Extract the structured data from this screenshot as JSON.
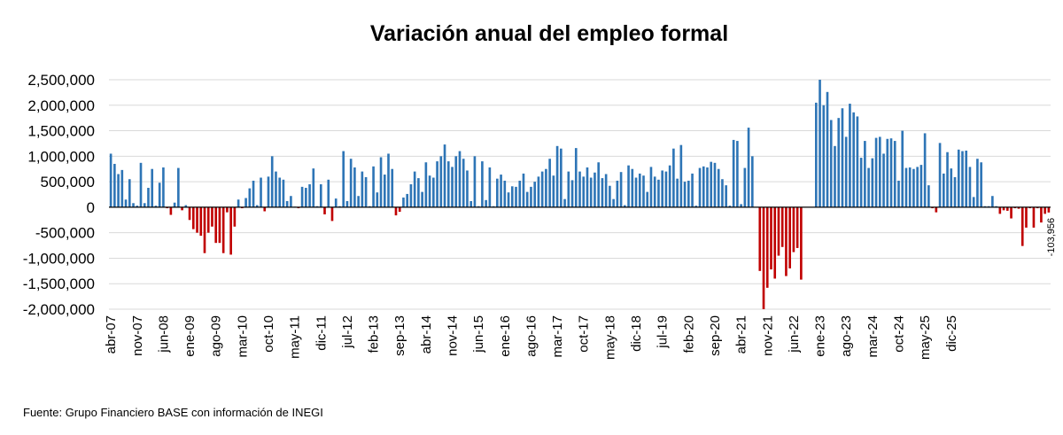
{
  "chart_data": {
    "type": "bar",
    "title": "Variación anual del empleo formal",
    "source": "Fuente: Grupo Financiero BASE con información de INEGI",
    "ylim": [
      -2000000,
      2500000
    ],
    "yticks": [
      2500000,
      2000000,
      1500000,
      1000000,
      500000,
      0,
      -500000,
      -1000000,
      -1500000,
      -2000000
    ],
    "ytick_labels": [
      "2,500,000",
      "2,000,000",
      "1,500,000",
      "1,000,000",
      "500,000",
      "0",
      "-500,000",
      "-1,000,000",
      "-1,500,000",
      "-2,000,000"
    ],
    "grid": true,
    "legend": "none",
    "x_start": "abr-07",
    "x_end": "dic-25",
    "xtick_labels": [
      "abr-07",
      "nov-07",
      "jun-08",
      "ene-09",
      "ago-09",
      "mar-10",
      "oct-10",
      "may-11",
      "dic-11",
      "jul-12",
      "feb-13",
      "sep-13",
      "abr-14",
      "nov-14",
      "jun-15",
      "ene-16",
      "ago-16",
      "mar-17",
      "oct-17",
      "may-18",
      "dic-18",
      "jul-19",
      "feb-20",
      "sep-20",
      "abr-21",
      "nov-21",
      "jun-22",
      "ene-23",
      "ago-23",
      "mar-24",
      "oct-24",
      "may-25",
      "dic-25"
    ],
    "colors": {
      "positive": "#2e75b6",
      "negative": "#c00000"
    },
    "annotation": {
      "text": "-103,956",
      "category": "dic-25",
      "value": -103956
    },
    "values": [
      1050000,
      850000,
      650000,
      730000,
      150000,
      550000,
      80000,
      30000,
      870000,
      80000,
      380000,
      750000,
      30000,
      480000,
      780000,
      -20000,
      -150000,
      90000,
      770000,
      -60000,
      40000,
      -250000,
      -430000,
      -500000,
      -560000,
      -900000,
      -500000,
      -380000,
      -700000,
      -700000,
      -900000,
      -100000,
      -930000,
      -380000,
      150000,
      -20000,
      180000,
      370000,
      520000,
      40000,
      580000,
      -80000,
      600000,
      1000000,
      700000,
      580000,
      540000,
      120000,
      220000,
      10000,
      -20000,
      400000,
      380000,
      450000,
      760000,
      20000,
      450000,
      -140000,
      540000,
      -270000,
      170000,
      20000,
      1100000,
      120000,
      950000,
      780000,
      220000,
      700000,
      590000,
      20000,
      800000,
      290000,
      980000,
      640000,
      1050000,
      750000,
      -160000,
      -90000,
      190000,
      260000,
      450000,
      700000,
      570000,
      300000,
      880000,
      620000,
      580000,
      900000,
      1000000,
      1230000,
      900000,
      790000,
      1000000,
      1100000,
      950000,
      720000,
      120000,
      1000000,
      20000,
      900000,
      140000,
      780000,
      20000,
      560000,
      640000,
      520000,
      290000,
      410000,
      400000,
      520000,
      660000,
      300000,
      400000,
      500000,
      600000,
      700000,
      750000,
      950000,
      620000,
      1200000,
      1150000,
      160000,
      700000,
      530000,
      1160000,
      700000,
      600000,
      780000,
      580000,
      680000,
      880000,
      570000,
      650000,
      420000,
      160000,
      520000,
      690000,
      40000,
      820000,
      750000,
      580000,
      660000,
      620000,
      300000,
      790000,
      600000,
      540000,
      720000,
      700000,
      820000,
      1150000,
      560000,
      1220000,
      500000,
      520000,
      660000,
      30000,
      770000,
      800000,
      780000,
      890000,
      870000,
      750000,
      550000,
      430000,
      30000,
      1320000,
      1300000,
      60000,
      770000,
      1560000,
      1000000,
      -10000,
      -1250000,
      -2000000,
      -1580000,
      -1220000,
      -1400000,
      -950000,
      -780000,
      -1350000,
      -1200000,
      -880000,
      -800000,
      -1420000,
      -10000,
      -10000,
      -10000,
      2050000,
      2500000,
      2000000,
      2260000,
      1710000,
      1200000,
      1750000,
      1940000,
      1380000,
      2030000,
      1860000,
      1780000,
      970000,
      1300000,
      770000,
      960000,
      1360000,
      1380000,
      1050000,
      1340000,
      1350000,
      1300000,
      520000,
      1500000,
      770000,
      780000,
      750000,
      790000,
      830000,
      1450000,
      430000,
      -20000,
      -100000,
      1260000,
      660000,
      1080000,
      760000,
      590000,
      1130000,
      1100000,
      1110000,
      790000,
      200000,
      950000,
      880000,
      20000,
      20000,
      220000,
      20000,
      -130000,
      -60000,
      -70000,
      -220000,
      -20000,
      -30000,
      -760000,
      -400000,
      -20000,
      -400000,
      -20000,
      -300000,
      -130000,
      -103956
    ]
  }
}
